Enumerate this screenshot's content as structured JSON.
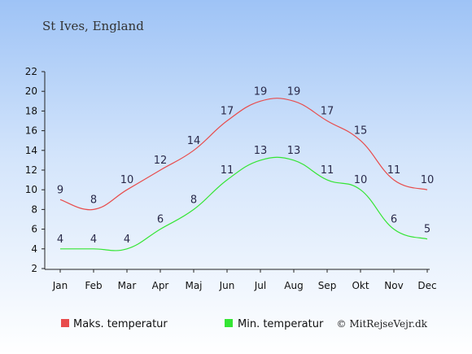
{
  "chart_data": {
    "type": "line",
    "title": "St Ives, England",
    "categories": [
      "Jan",
      "Feb",
      "Mar",
      "Apr",
      "Maj",
      "Jun",
      "Jul",
      "Aug",
      "Sep",
      "Okt",
      "Nov",
      "Dec"
    ],
    "y_ticks": [
      "2",
      "4",
      "6",
      "8",
      "10",
      "12",
      "14",
      "16",
      "18",
      "20",
      "22"
    ],
    "ylim": [
      2,
      22
    ],
    "grid": false,
    "legend_position": "bottom",
    "series": [
      {
        "name": "Maks. temperatur",
        "color": "#e84c4c",
        "values": [
          9,
          8,
          10,
          12,
          14,
          17,
          19,
          19,
          17,
          15,
          11,
          10
        ]
      },
      {
        "name": "Min. temperatur",
        "color": "#34e534",
        "values": [
          4,
          4,
          4,
          6,
          8,
          11,
          13,
          13,
          11,
          10,
          6,
          5
        ]
      }
    ]
  },
  "credit": "© MitRejseVejr.dk"
}
